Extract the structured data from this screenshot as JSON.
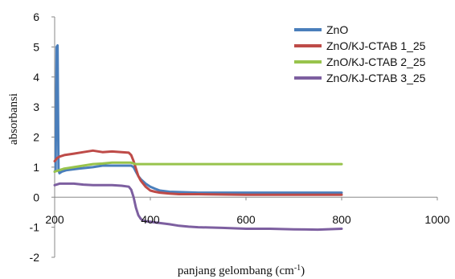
{
  "chart_data": {
    "type": "line",
    "title": "",
    "xlabel": "panjang gelombang (cm",
    "xlabel_sup": "-1",
    "xlabel_close": ")",
    "ylabel": "absorbansi",
    "xlim": [
      200,
      1000
    ],
    "ylim": [
      -2,
      6
    ],
    "xticks": [
      200,
      400,
      600,
      800,
      1000
    ],
    "yticks": [
      -2,
      -1,
      0,
      1,
      2,
      3,
      4,
      5,
      6
    ],
    "xtick_labels": [
      "200",
      "400",
      "600",
      "800",
      "1000"
    ],
    "ytick_labels": [
      "-2",
      "-1",
      "0",
      "1",
      "2",
      "3",
      "4",
      "5",
      "6"
    ],
    "legend_position": "top-right",
    "grid": false,
    "series": [
      {
        "name": "ZnO",
        "color": "#4a7ebb",
        "x": [
          200,
          202,
          204,
          206,
          208,
          210,
          215,
          225,
          250,
          280,
          300,
          320,
          340,
          360,
          365,
          370,
          375,
          380,
          390,
          400,
          410,
          420,
          440,
          460,
          480,
          500,
          600,
          700,
          800
        ],
        "y": [
          0.85,
          0.9,
          5.0,
          5.05,
          0.9,
          0.8,
          0.85,
          0.9,
          0.95,
          1.0,
          1.05,
          1.05,
          1.05,
          1.05,
          1.0,
          0.85,
          0.7,
          0.6,
          0.45,
          0.35,
          0.28,
          0.22,
          0.18,
          0.17,
          0.16,
          0.15,
          0.15,
          0.15,
          0.15
        ]
      },
      {
        "name": "ZnO/KJ-CTAB 1_25",
        "color": "#be4b48",
        "x": [
          200,
          205,
          210,
          220,
          240,
          260,
          280,
          300,
          320,
          340,
          355,
          360,
          365,
          370,
          375,
          380,
          390,
          400,
          410,
          420,
          440,
          460,
          500,
          600,
          700,
          800
        ],
        "y": [
          1.2,
          1.3,
          1.35,
          1.4,
          1.45,
          1.5,
          1.55,
          1.5,
          1.52,
          1.5,
          1.48,
          1.4,
          1.2,
          0.95,
          0.7,
          0.55,
          0.35,
          0.22,
          0.18,
          0.15,
          0.12,
          0.1,
          0.1,
          0.08,
          0.08,
          0.08
        ]
      },
      {
        "name": "ZnO/KJ-CTAB 2_25",
        "color": "#98c34c",
        "x": [
          200,
          210,
          220,
          240,
          260,
          280,
          300,
          320,
          340,
          360,
          365,
          370,
          380,
          400,
          450,
          500,
          600,
          700,
          800
        ],
        "y": [
          0.85,
          0.9,
          0.95,
          1.0,
          1.05,
          1.1,
          1.12,
          1.15,
          1.15,
          1.15,
          1.12,
          1.1,
          1.1,
          1.1,
          1.1,
          1.1,
          1.1,
          1.1,
          1.1
        ]
      },
      {
        "name": "ZnO/KJ-CTAB 3_25",
        "color": "#7d5fa0",
        "x": [
          200,
          210,
          220,
          240,
          260,
          280,
          300,
          320,
          340,
          355,
          360,
          365,
          370,
          375,
          380,
          385,
          390,
          400,
          410,
          420,
          440,
          460,
          480,
          500,
          550,
          600,
          650,
          700,
          750,
          800
        ],
        "y": [
          0.4,
          0.45,
          0.45,
          0.45,
          0.42,
          0.4,
          0.4,
          0.4,
          0.38,
          0.35,
          0.25,
          0.0,
          -0.35,
          -0.6,
          -0.72,
          -0.78,
          -0.8,
          -0.82,
          -0.84,
          -0.86,
          -0.9,
          -0.95,
          -0.98,
          -1.0,
          -1.02,
          -1.05,
          -1.05,
          -1.07,
          -1.08,
          -1.05
        ]
      }
    ]
  }
}
